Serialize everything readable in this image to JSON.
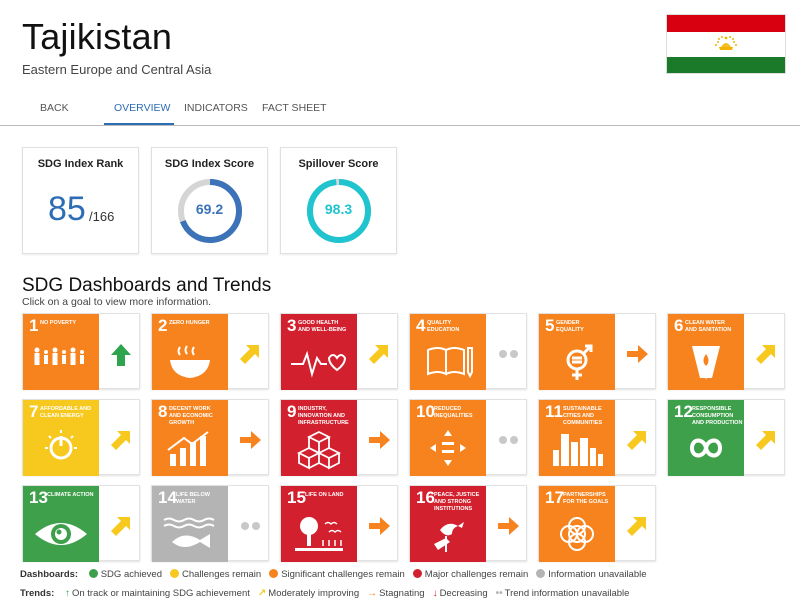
{
  "header": {
    "country": "Tajikistan",
    "region": "Eastern Europe and Central Asia"
  },
  "tabs": [
    {
      "label": "BACK",
      "active": false
    },
    {
      "label": "OVERVIEW",
      "active": true
    },
    {
      "label": "INDICATORS",
      "active": false
    },
    {
      "label": "FACT SHEET",
      "active": false
    }
  ],
  "cards": {
    "rank": {
      "title": "SDG Index Rank",
      "value": "85",
      "total": "/166"
    },
    "score": {
      "title": "SDG Index Score",
      "value": "69.2",
      "fraction": 0.692,
      "color": "#3b72b8"
    },
    "spillover": {
      "title": "Spillover Score",
      "value": "98.3",
      "fraction": 0.983,
      "color": "#1fc4cf"
    }
  },
  "dashboards": {
    "title": "SDG Dashboards and Trends",
    "subtitle": "Click on a goal to view more information.",
    "goals": [
      {
        "num": "1",
        "label": "NO POVERTY",
        "color": "#f7831e",
        "trend": "up",
        "icon": "people-icon"
      },
      {
        "num": "2",
        "label": "ZERO HUNGER",
        "color": "#f7831e",
        "trend": "moderate",
        "icon": "bowl-icon"
      },
      {
        "num": "3",
        "label": "GOOD HEALTH AND WELL-BEING",
        "color": "#d3202f",
        "trend": "moderate",
        "icon": "heartbeat-icon"
      },
      {
        "num": "4",
        "label": "QUALITY EDUCATION",
        "color": "#f7831e",
        "trend": "na",
        "icon": "book-icon"
      },
      {
        "num": "5",
        "label": "GENDER EQUALITY",
        "color": "#f7831e",
        "trend": "stagnating",
        "icon": "gender-icon"
      },
      {
        "num": "6",
        "label": "CLEAN WATER AND SANITATION",
        "color": "#f7831e",
        "trend": "moderate",
        "icon": "water-icon"
      },
      {
        "num": "7",
        "label": "AFFORDABLE AND CLEAN ENERGY",
        "color": "#f7c81e",
        "trend": "moderate",
        "icon": "power-icon"
      },
      {
        "num": "8",
        "label": "DECENT WORK AND ECONOMIC GROWTH",
        "color": "#f7831e",
        "trend": "stagnating",
        "icon": "growth-icon"
      },
      {
        "num": "9",
        "label": "INDUSTRY, INNOVATION AND INFRASTRUCTURE",
        "color": "#d3202f",
        "trend": "stagnating",
        "icon": "cubes-icon"
      },
      {
        "num": "10",
        "label": "REDUCED INEQUALITIES",
        "color": "#f7831e",
        "trend": "na",
        "icon": "equality-icon"
      },
      {
        "num": "11",
        "label": "SUSTAINABLE CITIES AND COMMUNITIES",
        "color": "#f7831e",
        "trend": "moderate",
        "icon": "city-icon"
      },
      {
        "num": "12",
        "label": "RESPONSIBLE CONSUMPTION AND PRODUCTION",
        "color": "#3ea04a",
        "trend": "moderate",
        "icon": "infinity-icon"
      },
      {
        "num": "13",
        "label": "CLIMATE ACTION",
        "color": "#3ea04a",
        "trend": "moderate",
        "icon": "eye-globe-icon"
      },
      {
        "num": "14",
        "label": "LIFE BELOW WATER",
        "color": "#b4b4b4",
        "trend": "na",
        "icon": "fish-icon"
      },
      {
        "num": "15",
        "label": "LIFE ON LAND",
        "color": "#d3202f",
        "trend": "stagnating",
        "icon": "tree-icon"
      },
      {
        "num": "16",
        "label": "PEACE, JUSTICE AND STRONG INSTITUTIONS",
        "color": "#d3202f",
        "trend": "stagnating",
        "icon": "dove-icon"
      },
      {
        "num": "17",
        "label": "PARTNERSHIPS FOR THE GOALS",
        "color": "#f7831e",
        "trend": "moderate",
        "icon": "rings-icon"
      }
    ]
  },
  "legend": {
    "dash_label": "Dashboards:",
    "dash_items": [
      {
        "label": "SDG achieved",
        "color": "#3ea04a"
      },
      {
        "label": "Challenges remain",
        "color": "#f7c81e"
      },
      {
        "label": "Significant challenges remain",
        "color": "#f7831e"
      },
      {
        "label": "Major challenges remain",
        "color": "#d3202f"
      },
      {
        "label": "Information unavailable",
        "color": "#b4b4b4"
      }
    ],
    "trend_label": "Trends:",
    "trend_items": [
      {
        "label": "On track or maintaining SDG achievement",
        "symbol": "↑",
        "color": "#3ea04a"
      },
      {
        "label": "Moderately improving",
        "symbol": "↗",
        "color": "#f7c81e"
      },
      {
        "label": "Stagnating",
        "symbol": "→",
        "color": "#f7831e"
      },
      {
        "label": "Decreasing",
        "symbol": "↓",
        "color": "#d3202f"
      },
      {
        "label": "Trend information unavailable",
        "symbol": "••",
        "color": "#b4b4b4"
      }
    ]
  }
}
